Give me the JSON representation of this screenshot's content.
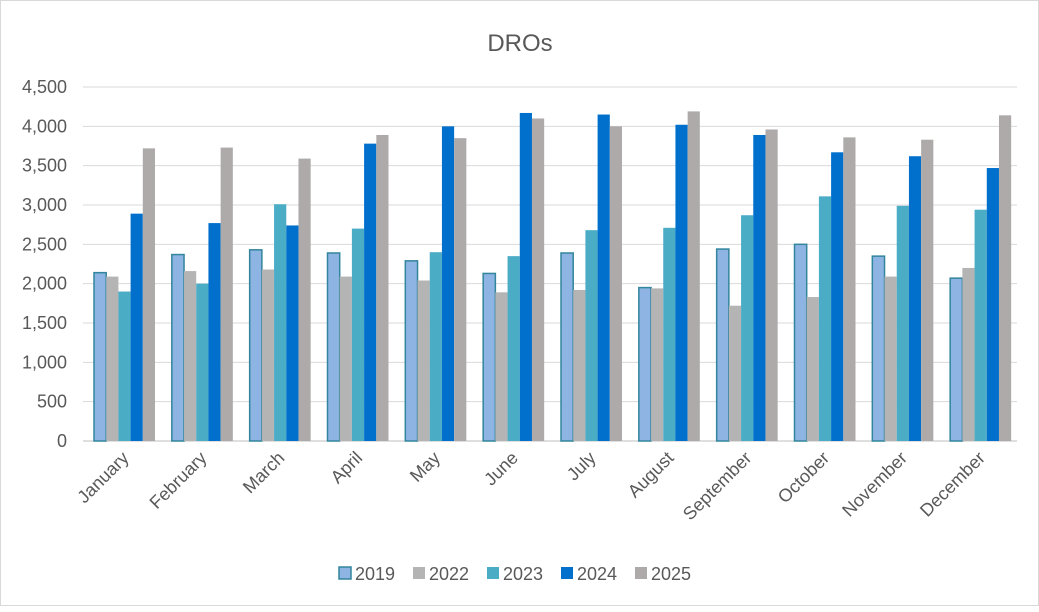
{
  "chart_data": {
    "type": "bar",
    "title": "DROs",
    "xlabel": "",
    "ylabel": "",
    "ylim": [
      0,
      4500
    ],
    "yticks": [
      "0",
      "500",
      "1,000",
      "1,500",
      "2,000",
      "2,500",
      "3,000",
      "3,500",
      "4,000",
      "4,500"
    ],
    "grid": true,
    "legend_position": "bottom",
    "categories": [
      "January",
      "February",
      "March",
      "April",
      "May",
      "June",
      "July",
      "August",
      "September",
      "October",
      "November",
      "December"
    ],
    "series": [
      {
        "name": "2019",
        "color": "#8EB4E3",
        "stroke": "#31859C",
        "values": [
          2140,
          2370,
          2430,
          2390,
          2290,
          2130,
          2390,
          1950,
          2440,
          2500,
          2350,
          2070
        ]
      },
      {
        "name": "2022",
        "color": "#B4B4B4",
        "values": [
          2090,
          2160,
          2180,
          2090,
          2040,
          1890,
          1920,
          1940,
          1720,
          1830,
          2090,
          2200
        ]
      },
      {
        "name": "2023",
        "color": "#4BACC6",
        "values": [
          1900,
          2000,
          3010,
          2700,
          2400,
          2350,
          2680,
          2710,
          2870,
          3110,
          2990,
          2940
        ]
      },
      {
        "name": "2024",
        "color": "#0070CC",
        "values": [
          2890,
          2770,
          2740,
          3780,
          4000,
          4170,
          4150,
          4020,
          3890,
          3670,
          3620,
          3470
        ]
      },
      {
        "name": "2025",
        "color": "#AEAAAA",
        "values": [
          3720,
          3730,
          3590,
          3890,
          3850,
          4100,
          4000,
          4190,
          3960,
          3860,
          3830,
          4140
        ]
      }
    ]
  }
}
